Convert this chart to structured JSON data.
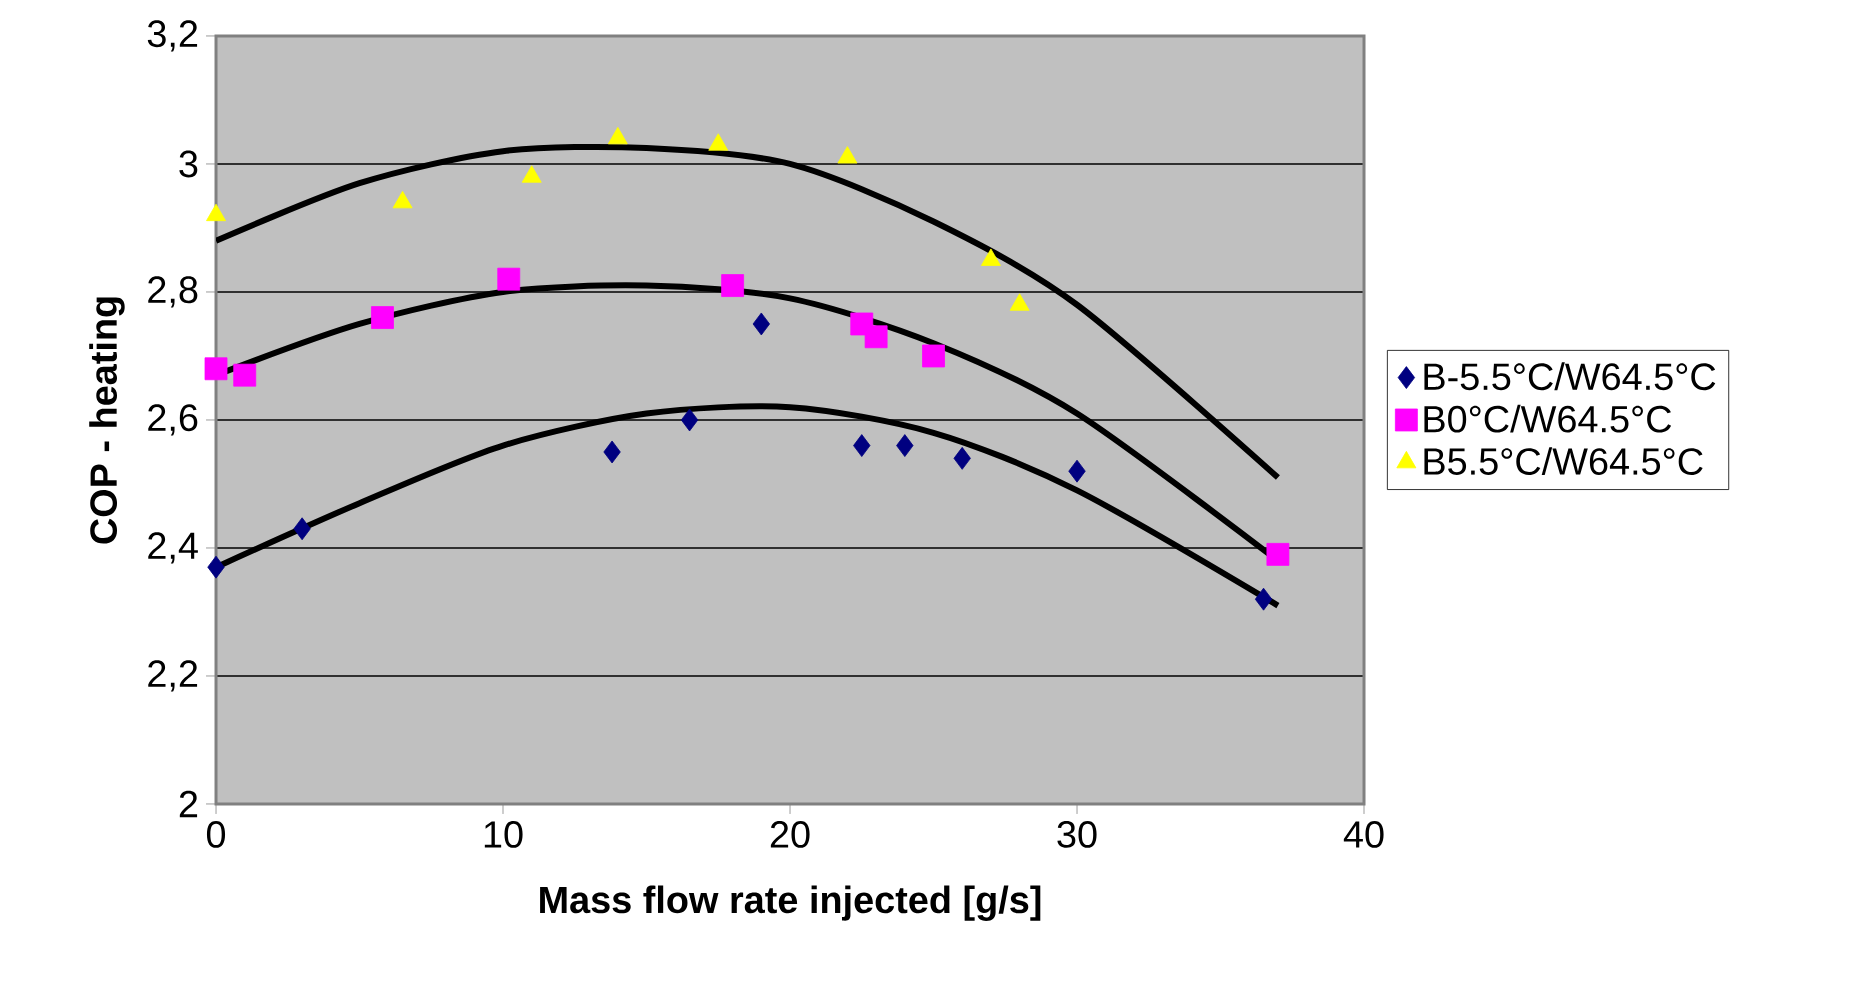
{
  "chart_data": {
    "type": "scatter",
    "xlabel": "Mass flow rate injected [g/s]",
    "ylabel": "COP - heating",
    "xlim": [
      0,
      40
    ],
    "xticks": [
      0,
      10,
      20,
      30,
      40
    ],
    "ylim": [
      2,
      3.2
    ],
    "yticks": [
      {
        "value": 2,
        "label": "2"
      },
      {
        "value": 2.2,
        "label": "2,2"
      },
      {
        "value": 2.4,
        "label": "2,4"
      },
      {
        "value": 2.6,
        "label": "2,6"
      },
      {
        "value": 2.8,
        "label": "2,8"
      },
      {
        "value": 3,
        "label": "3"
      },
      {
        "value": 3.2,
        "label": "3,2"
      }
    ],
    "grid": "y",
    "legend": "right",
    "series": [
      {
        "name": "B-5.5°C/W64.5°C",
        "color": "#000080",
        "marker": "diamond",
        "x": [
          0,
          3,
          13.8,
          16.5,
          19,
          22.5,
          24,
          26,
          30,
          36.5
        ],
        "values": [
          2.37,
          2.43,
          2.55,
          2.6,
          2.75,
          2.56,
          2.56,
          2.54,
          2.52,
          2.32
        ]
      },
      {
        "name": "B0°C/W64.5°C",
        "color": "#ff00ff",
        "marker": "square",
        "x": [
          0,
          1,
          5.8,
          10.2,
          18,
          22.5,
          23,
          25,
          37
        ],
        "values": [
          2.68,
          2.67,
          2.76,
          2.82,
          2.81,
          2.75,
          2.73,
          2.7,
          2.39
        ]
      },
      {
        "name": "B5.5°C/W64.5°C",
        "color": "#ffff00",
        "marker": "triangle",
        "x": [
          0,
          6.5,
          11,
          14,
          17.5,
          22,
          27,
          28
        ],
        "values": [
          2.92,
          2.94,
          2.98,
          3.04,
          3.03,
          3.01,
          2.85,
          2.78
        ]
      },
      {
        "type": "line",
        "color": "#000000",
        "marker": "none",
        "x": [
          0,
          5,
          10,
          15,
          20,
          25,
          30,
          37
        ],
        "values": [
          2.37,
          2.47,
          2.56,
          2.61,
          2.62,
          2.58,
          2.49,
          2.31
        ]
      },
      {
        "type": "line",
        "color": "#000000",
        "marker": "none",
        "x": [
          0,
          5,
          10,
          15,
          20,
          25,
          30,
          37
        ],
        "values": [
          2.67,
          2.75,
          2.8,
          2.81,
          2.79,
          2.72,
          2.61,
          2.38
        ]
      },
      {
        "type": "line",
        "color": "#000000",
        "marker": "none",
        "x": [
          0,
          5,
          10,
          15,
          20,
          25,
          30,
          37
        ],
        "values": [
          2.88,
          2.97,
          3.02,
          3.025,
          3.0,
          2.91,
          2.78,
          2.51
        ]
      }
    ]
  }
}
